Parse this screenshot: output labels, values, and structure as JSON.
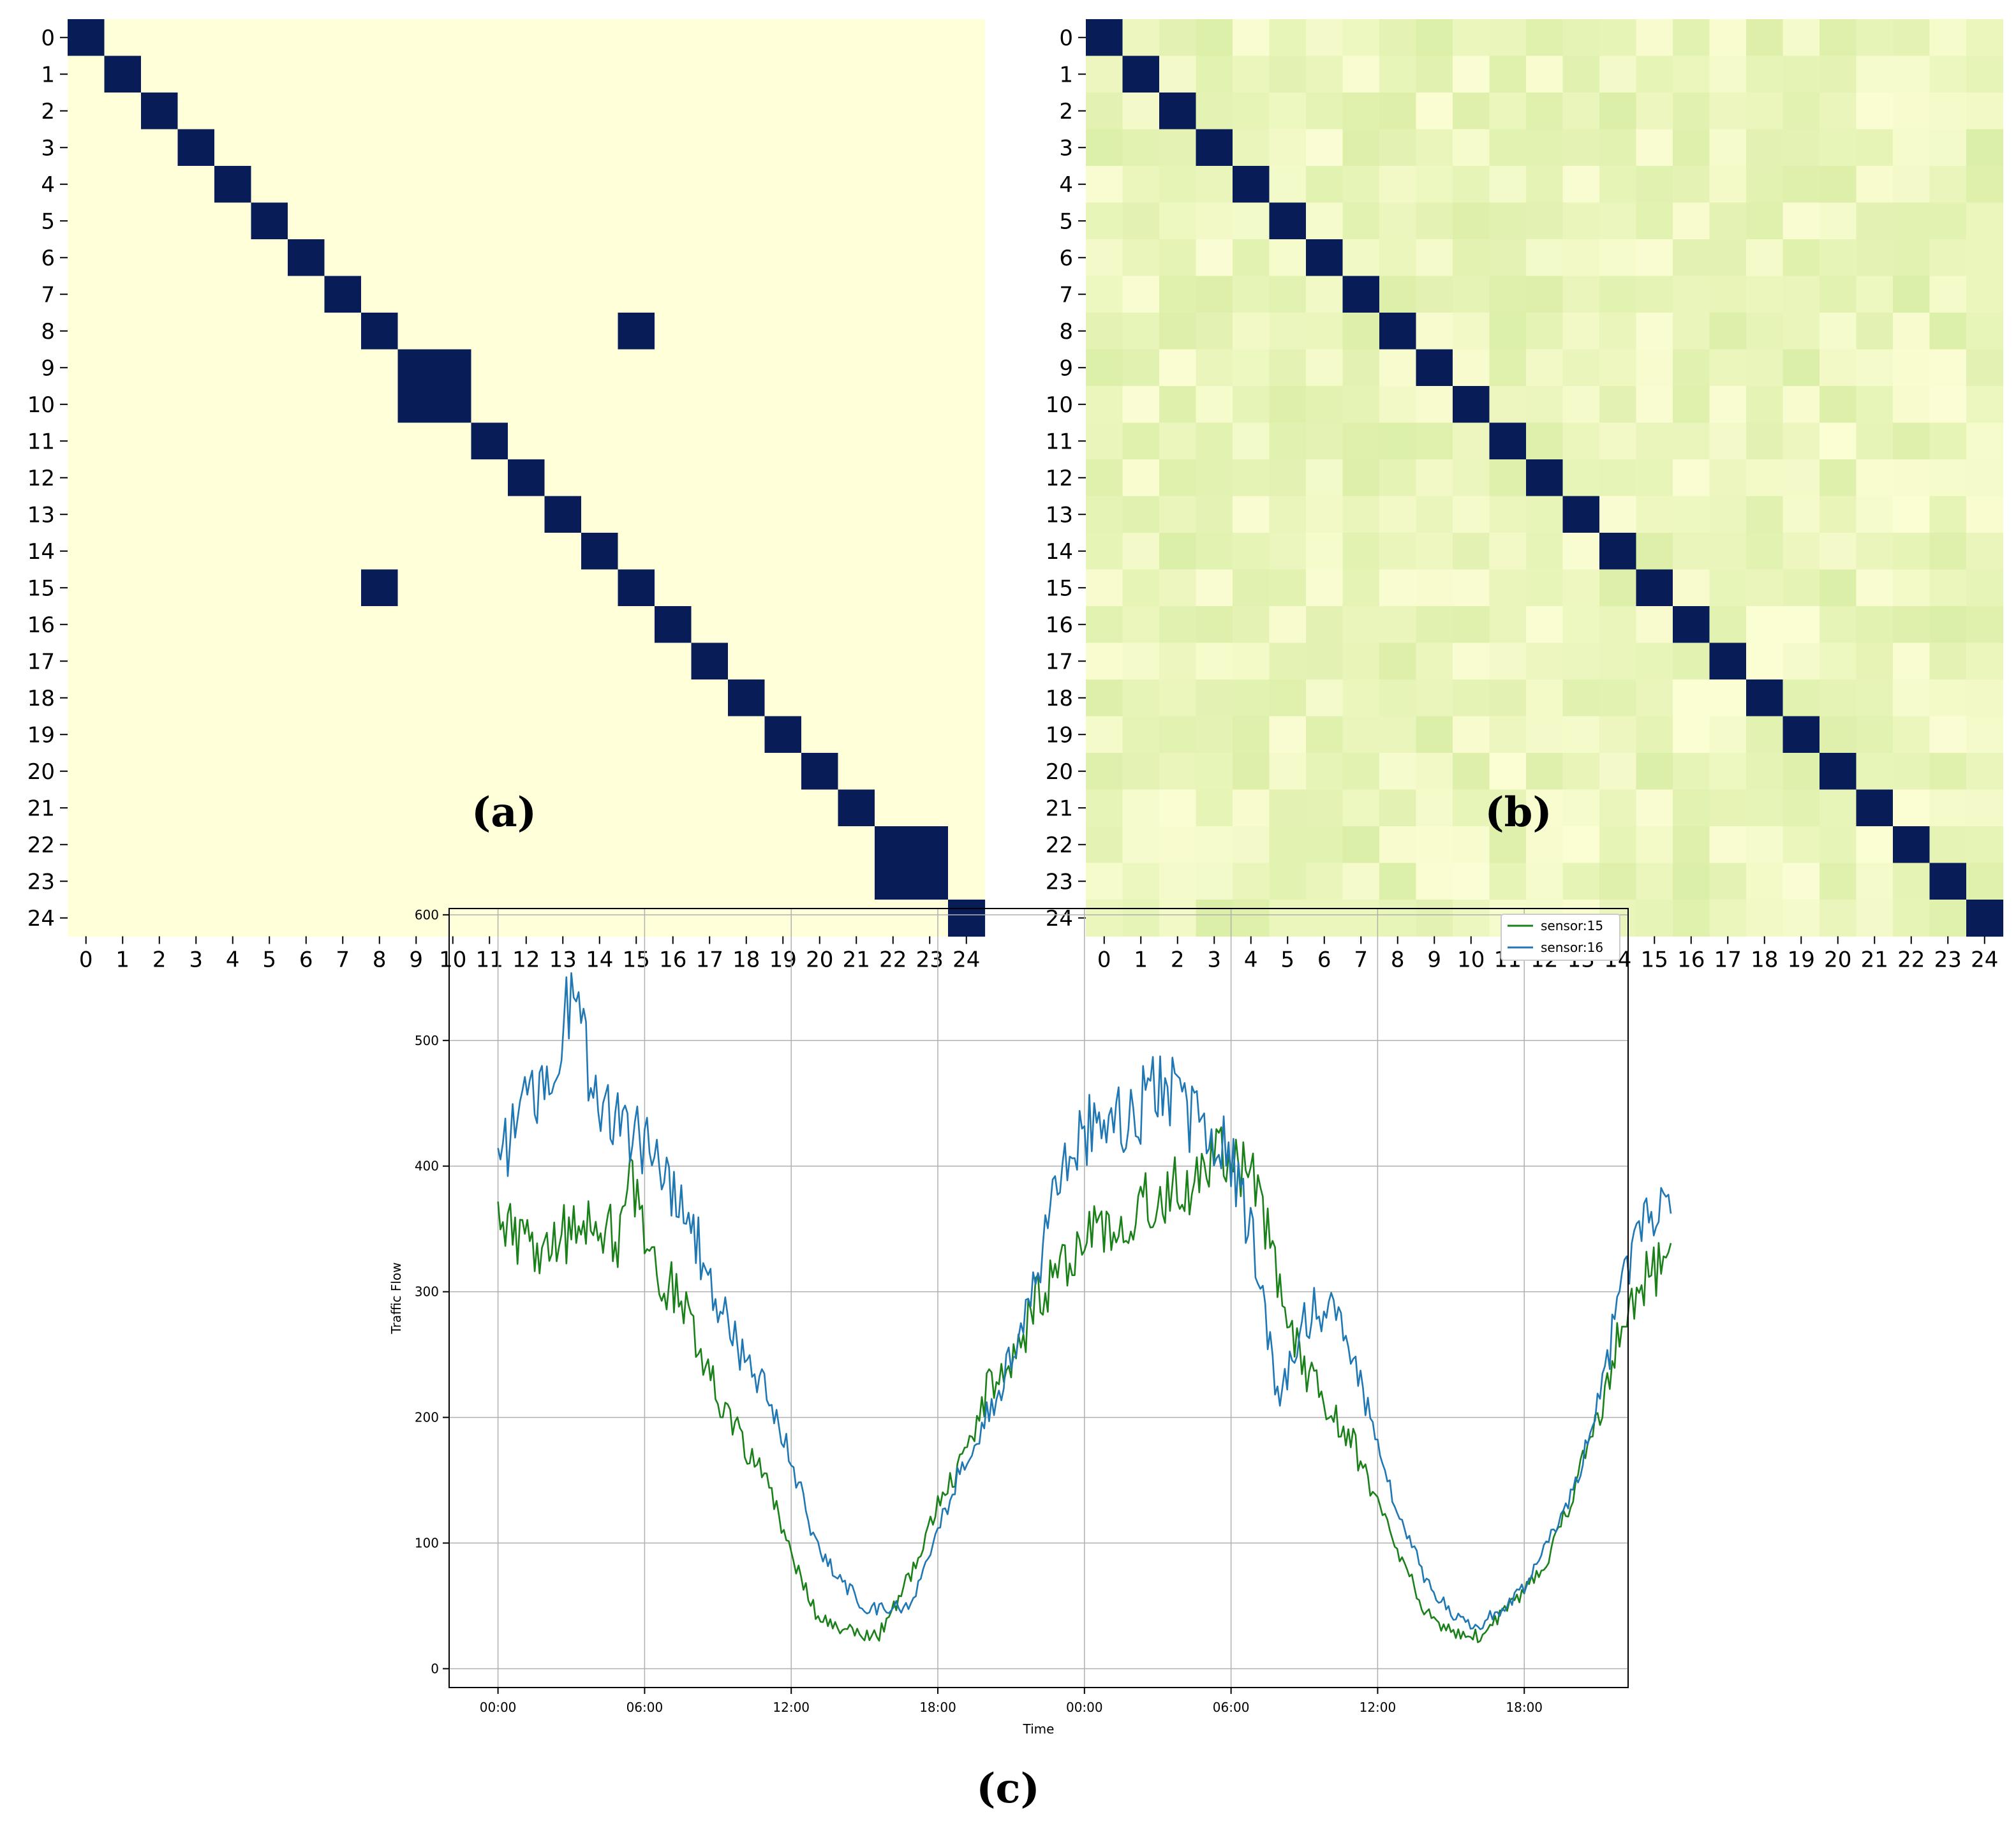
{
  "panel_labels": {
    "a": "(a)",
    "b": "(b)",
    "c": "(c)"
  },
  "colors": {
    "heat_low": "#ffffd9",
    "heat_mid": "#dcefa8",
    "heat_high": "#081d58",
    "sensor15": "#1a8019",
    "sensor16": "#1f77b4",
    "grid": "#b0b0b0"
  },
  "chart_data": [
    {
      "type": "heatmap",
      "panel": "(a)",
      "x_labels": [
        "0",
        "1",
        "2",
        "3",
        "4",
        "5",
        "6",
        "7",
        "8",
        "9",
        "10",
        "11",
        "12",
        "13",
        "14",
        "15",
        "16",
        "17",
        "18",
        "19",
        "20",
        "21",
        "22",
        "23",
        "24"
      ],
      "y_labels": [
        "0",
        "1",
        "2",
        "3",
        "4",
        "5",
        "6",
        "7",
        "8",
        "9",
        "10",
        "11",
        "12",
        "13",
        "14",
        "15",
        "16",
        "17",
        "18",
        "19",
        "20",
        "21",
        "22",
        "23",
        "24"
      ],
      "value_range": [
        0,
        1
      ],
      "description_of_values": "binary adjacency: 1 on diagonal",
      "ones": [
        [
          0,
          0
        ],
        [
          1,
          1
        ],
        [
          2,
          2
        ],
        [
          3,
          3
        ],
        [
          4,
          4
        ],
        [
          5,
          5
        ],
        [
          6,
          6
        ],
        [
          7,
          7
        ],
        [
          8,
          8
        ],
        [
          8,
          15
        ],
        [
          9,
          9
        ],
        [
          9,
          10
        ],
        [
          10,
          9
        ],
        [
          10,
          10
        ],
        [
          11,
          11
        ],
        [
          12,
          12
        ],
        [
          13,
          13
        ],
        [
          14,
          14
        ],
        [
          15,
          8
        ],
        [
          15,
          15
        ],
        [
          16,
          16
        ],
        [
          17,
          17
        ],
        [
          18,
          18
        ],
        [
          19,
          19
        ],
        [
          20,
          20
        ],
        [
          21,
          21
        ],
        [
          22,
          22
        ],
        [
          22,
          23
        ],
        [
          23,
          22
        ],
        [
          23,
          23
        ],
        [
          24,
          24
        ]
      ]
    },
    {
      "type": "heatmap",
      "panel": "(b)",
      "x_labels": [
        "0",
        "1",
        "2",
        "3",
        "4",
        "5",
        "6",
        "7",
        "8",
        "9",
        "10",
        "11",
        "12",
        "13",
        "14",
        "15",
        "16",
        "17",
        "18",
        "19",
        "20",
        "21",
        "22",
        "23",
        "24"
      ],
      "y_labels": [
        "0",
        "1",
        "2",
        "3",
        "4",
        "5",
        "6",
        "7",
        "8",
        "9",
        "10",
        "11",
        "12",
        "13",
        "14",
        "15",
        "16",
        "17",
        "18",
        "19",
        "20",
        "21",
        "22",
        "23",
        "24"
      ],
      "value_range": [
        0,
        1
      ],
      "diagonal_value": 1,
      "off_diagonal_range": [
        0.0,
        0.2
      ]
    },
    {
      "type": "line",
      "panel": "(c)",
      "xlabel": "Time",
      "ylabel": "Traffic Flow",
      "x_range_hours": [
        -2,
        46.25
      ],
      "xlim": [
        -2,
        46.25
      ],
      "ylim": [
        -15,
        605
      ],
      "x_ticks": [
        {
          "hours": 0,
          "label": "00:00"
        },
        {
          "hours": 6,
          "label": "06:00"
        },
        {
          "hours": 12,
          "label": "12:00"
        },
        {
          "hours": 18,
          "label": "18:00"
        },
        {
          "hours": 24,
          "label": "00:00"
        },
        {
          "hours": 30,
          "label": "06:00"
        },
        {
          "hours": 36,
          "label": "12:00"
        },
        {
          "hours": 42,
          "label": "18:00"
        },
        {
          "hours": 48,
          "label": "00:00"
        }
      ],
      "y_ticks": [
        0,
        100,
        200,
        300,
        400,
        500,
        600
      ],
      "grid": true,
      "legend_position": "top-right",
      "series": [
        {
          "name": "sensor:15",
          "points": [
            [
              0,
              355
            ],
            [
              1,
              340
            ],
            [
              2,
              330
            ],
            [
              3,
              350
            ],
            [
              4,
              345
            ],
            [
              5,
              345
            ],
            [
              5.5,
              390
            ],
            [
              6,
              340
            ],
            [
              7,
              305
            ],
            [
              8,
              270
            ],
            [
              9,
              220
            ],
            [
              10,
              180
            ],
            [
              11,
              150
            ],
            [
              12,
              90
            ],
            [
              13,
              45
            ],
            [
              14,
              32
            ],
            [
              15,
              28
            ],
            [
              15.5,
              25
            ],
            [
              16,
              40
            ],
            [
              17,
              80
            ],
            [
              18,
              130
            ],
            [
              19,
              165
            ],
            [
              20,
              220
            ],
            [
              21,
              245
            ],
            [
              22,
              290
            ],
            [
              23,
              320
            ],
            [
              24,
              340
            ],
            [
              25,
              355
            ],
            [
              26,
              360
            ],
            [
              27,
              375
            ],
            [
              28,
              385
            ],
            [
              29,
              395
            ],
            [
              30,
              410
            ],
            [
              31,
              385
            ],
            [
              32,
              300
            ],
            [
              33,
              240
            ],
            [
              34,
              210
            ],
            [
              35,
              180
            ],
            [
              36,
              130
            ],
            [
              37,
              85
            ],
            [
              38,
              45
            ],
            [
              39,
              30
            ],
            [
              40,
              25
            ],
            [
              41,
              40
            ],
            [
              42,
              60
            ],
            [
              43,
              90
            ],
            [
              44,
              140
            ],
            [
              45,
              200
            ],
            [
              46,
              280
            ],
            [
              47,
              310
            ],
            [
              48,
              330
            ]
          ]
        },
        {
          "name": "sensor:16",
          "points": [
            [
              0,
              395
            ],
            [
              1,
              450
            ],
            [
              2,
              470
            ],
            [
              3,
              540
            ],
            [
              4,
              460
            ],
            [
              5,
              440
            ],
            [
              6,
              420
            ],
            [
              7,
              390
            ],
            [
              8,
              350
            ],
            [
              9,
              290
            ],
            [
              10,
              250
            ],
            [
              11,
              220
            ],
            [
              12,
              165
            ],
            [
              13,
              100
            ],
            [
              14,
              70
            ],
            [
              15,
              50
            ],
            [
              16,
              45
            ],
            [
              17,
              55
            ],
            [
              18,
              110
            ],
            [
              19,
              160
            ],
            [
              20,
              200
            ],
            [
              21,
              245
            ],
            [
              22,
              310
            ],
            [
              23,
              390
            ],
            [
              24,
              425
            ],
            [
              25,
              440
            ],
            [
              26,
              440
            ],
            [
              27,
              465
            ],
            [
              28,
              450
            ],
            [
              29,
              420
            ],
            [
              30,
              410
            ],
            [
              31,
              330
            ],
            [
              32,
              210
            ],
            [
              33,
              280
            ],
            [
              34,
              290
            ],
            [
              35,
              250
            ],
            [
              36,
              180
            ],
            [
              37,
              115
            ],
            [
              38,
              70
            ],
            [
              39,
              45
            ],
            [
              40,
              35
            ],
            [
              41,
              45
            ],
            [
              42,
              65
            ],
            [
              43,
              100
            ],
            [
              44,
              140
            ],
            [
              45,
              210
            ],
            [
              46,
              300
            ],
            [
              47,
              360
            ],
            [
              48,
              370
            ]
          ]
        }
      ]
    }
  ]
}
